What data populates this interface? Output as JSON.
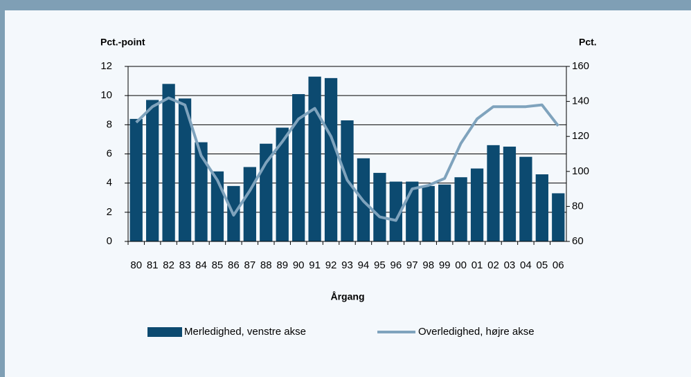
{
  "chart_data": {
    "type": "bar",
    "ylabel": "Pct.-point",
    "y2label": "Pct.",
    "xlabel": "Årgang",
    "categories": [
      "80",
      "81",
      "82",
      "83",
      "84",
      "85",
      "86",
      "87",
      "88",
      "89",
      "90",
      "91",
      "92",
      "93",
      "94",
      "95",
      "96",
      "97",
      "98",
      "99",
      "00",
      "01",
      "02",
      "03",
      "04",
      "05",
      "06"
    ],
    "series": [
      {
        "name": "Merledighed, venstre akse",
        "type": "bar",
        "color": "#0c4a70",
        "values": [
          8.4,
          9.7,
          10.8,
          9.8,
          6.8,
          4.8,
          3.8,
          5.1,
          6.7,
          7.8,
          10.1,
          11.3,
          11.2,
          8.3,
          5.7,
          4.7,
          4.1,
          4.1,
          3.8,
          3.9,
          4.4,
          5.0,
          6.6,
          6.5,
          5.8,
          4.6,
          3.3
        ]
      },
      {
        "name": "Overledighed, højre akse",
        "type": "line",
        "axis": "y2",
        "color": "#7fa3bd",
        "values": [
          128,
          137,
          142,
          138,
          109,
          95,
          75,
          89,
          105,
          117,
          130,
          136,
          120,
          95,
          83,
          74,
          72,
          90,
          92,
          96,
          116,
          130,
          137,
          137,
          137,
          138,
          126
        ]
      }
    ],
    "ylim": [
      0,
      12
    ],
    "yticks": [
      0,
      2,
      4,
      6,
      8,
      10,
      12
    ],
    "y2lim": [
      60,
      160
    ],
    "y2ticks": [
      60,
      80,
      100,
      120,
      140,
      160
    ],
    "grid": true
  }
}
